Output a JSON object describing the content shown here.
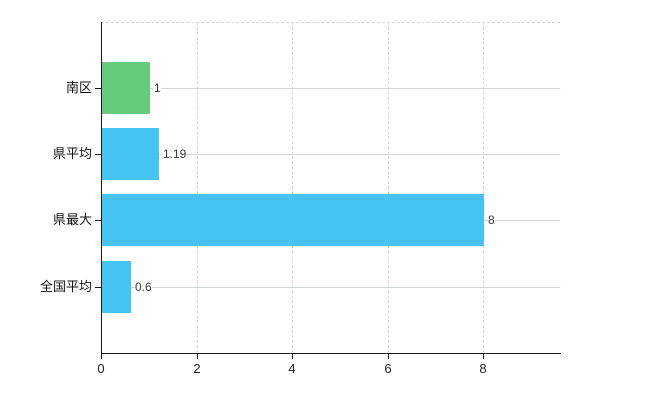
{
  "chart_data": {
    "type": "bar",
    "orientation": "horizontal",
    "title": "",
    "xlabel": "",
    "ylabel": "",
    "categories": [
      "南区",
      "県平均",
      "県最大",
      "全国平均"
    ],
    "values": [
      1,
      1.19,
      8,
      0.6
    ],
    "value_labels": [
      "1",
      "1.19",
      "8",
      "0.6"
    ],
    "bar_colors": [
      "#66cb7a",
      "#45c3f2",
      "#45c3f2",
      "#45c3f2"
    ],
    "x_ticks": [
      0,
      2,
      4,
      6,
      8
    ],
    "xlim": [
      0,
      9.6
    ],
    "grid": "vertical dashed at x ticks, horizontal solid at category centers, dashed top border",
    "legend": "none"
  },
  "colors": {
    "background": "#ffffff",
    "axis": "#1a1a1a",
    "grid_dashed": "#d8d8d8",
    "grid_solid": "#d2d8d2",
    "category_text": "#111111",
    "tick_text": "#222222",
    "value_text": "#3a3a3a"
  }
}
